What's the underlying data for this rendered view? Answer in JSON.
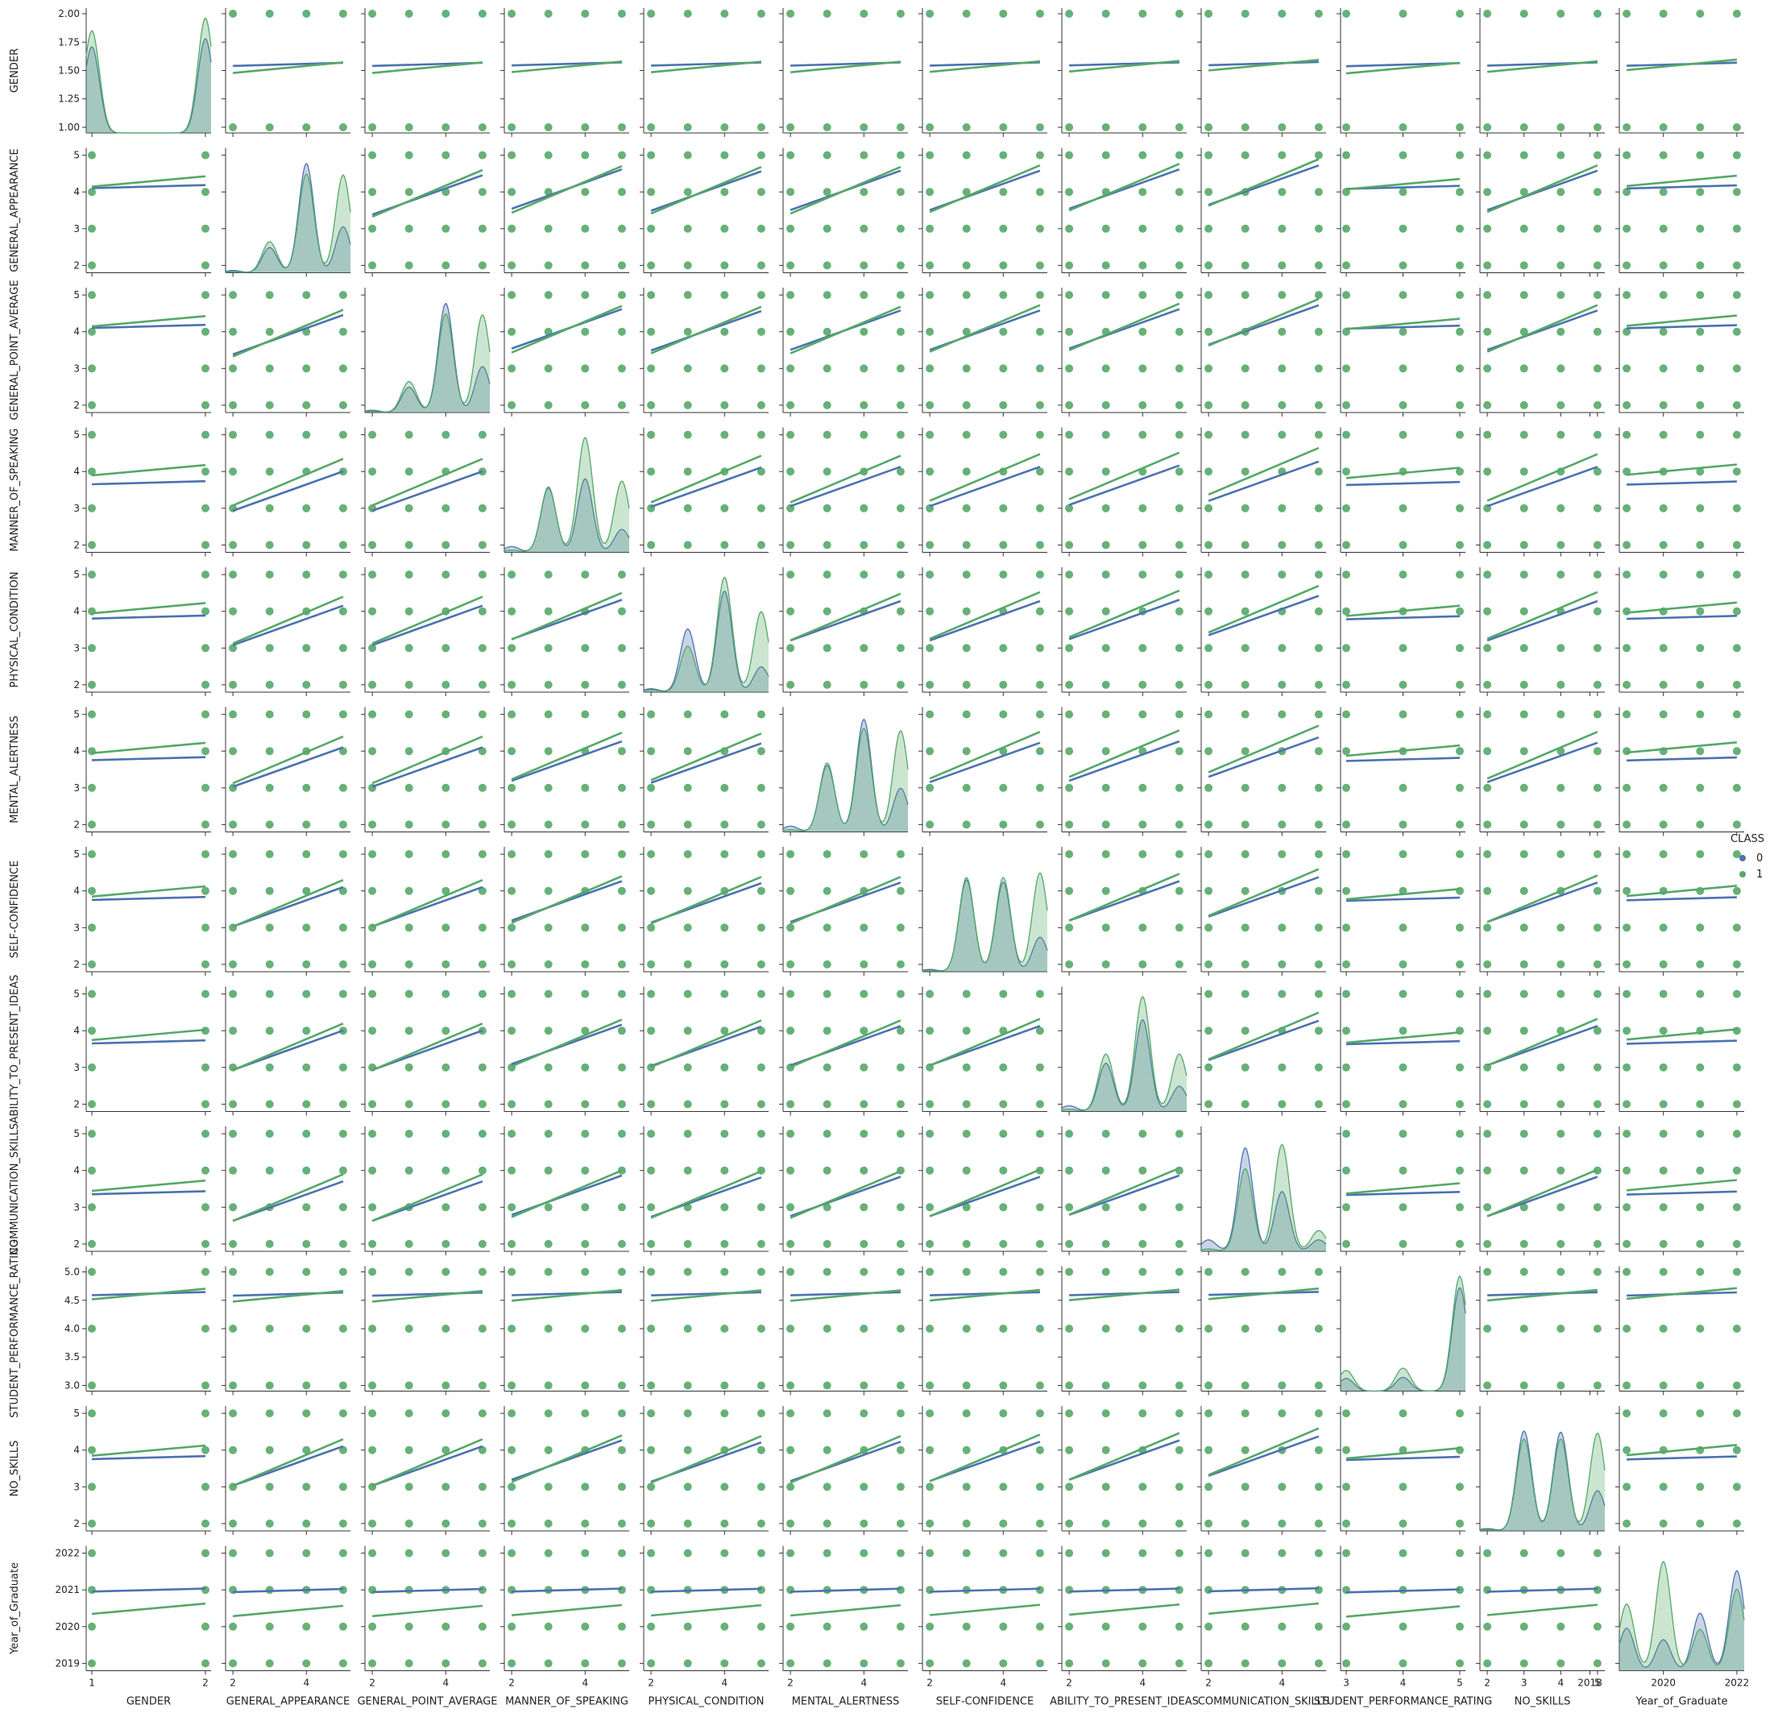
{
  "chart_data": {
    "type": "scatter",
    "subtype": "pairplot",
    "variables": [
      "GENDER",
      "GENERAL_APPEARANCE",
      "GENERAL_POINT_AVERAGE",
      "MANNER_OF_SPEAKING",
      "PHYSICAL_CONDITION",
      "MENTAL_ALERTNESS",
      "SELF-CONFIDENCE",
      "ABILITY_TO_PRESENT_IDEAS",
      "COMMUNICATION_SKILLS",
      "STUDENT_PERFORMANCE_RATING",
      "NO_SKILLS",
      "Year_of_Graduate"
    ],
    "axes": [
      {
        "range": [
          0.95,
          2.05
        ],
        "ticks": [
          1.0,
          1.25,
          1.5,
          1.75,
          2.0
        ],
        "ticklabels": [
          "1.00",
          "1.25",
          "1.50",
          "1.75",
          "2.00"
        ],
        "xticks": [
          1,
          2
        ],
        "xticklabels": [
          "1",
          "2"
        ],
        "levels": [
          1,
          2
        ],
        "means": [
          1.56,
          1.55
        ]
      },
      {
        "range": [
          1.8,
          5.2
        ],
        "ticks": [
          2,
          3,
          4,
          5
        ],
        "ticklabels": [
          "2",
          "3",
          "4",
          "5"
        ],
        "xticks": [
          2,
          4
        ],
        "xticklabels": [
          "2",
          "4"
        ],
        "levels": [
          2,
          3,
          4,
          5
        ],
        "means": [
          4.15,
          4.3
        ]
      },
      {
        "range": [
          1.8,
          5.2
        ],
        "ticks": [
          2,
          3,
          4,
          5
        ],
        "ticklabels": [
          "2",
          "3",
          "4",
          "5"
        ],
        "xticks": [
          2,
          4
        ],
        "xticklabels": [
          "2",
          "4"
        ],
        "levels": [
          2,
          3,
          4,
          5
        ],
        "means": [
          4.15,
          4.3
        ]
      },
      {
        "range": [
          1.8,
          5.2
        ],
        "ticks": [
          2,
          3,
          4,
          5
        ],
        "ticklabels": [
          "2",
          "3",
          "4",
          "5"
        ],
        "xticks": [
          2,
          4
        ],
        "xticklabels": [
          "2",
          "4"
        ],
        "levels": [
          2,
          3,
          4,
          5
        ],
        "means": [
          3.7,
          4.05
        ]
      },
      {
        "range": [
          1.8,
          5.2
        ],
        "ticks": [
          2,
          3,
          4,
          5
        ],
        "ticklabels": [
          "2",
          "3",
          "4",
          "5"
        ],
        "xticks": [
          2,
          4
        ],
        "xticklabels": [
          "2",
          "4"
        ],
        "levels": [
          2,
          3,
          4,
          5
        ],
        "means": [
          3.85,
          4.1
        ]
      },
      {
        "range": [
          1.8,
          5.2
        ],
        "ticks": [
          2,
          3,
          4,
          5
        ],
        "ticklabels": [
          "2",
          "3",
          "4",
          "5"
        ],
        "xticks": [
          2,
          4
        ],
        "xticklabels": [
          "2",
          "4"
        ],
        "levels": [
          2,
          3,
          4,
          5
        ],
        "means": [
          3.8,
          4.1
        ]
      },
      {
        "range": [
          1.8,
          5.2
        ],
        "ticks": [
          2,
          3,
          4,
          5
        ],
        "ticklabels": [
          "2",
          "3",
          "4",
          "5"
        ],
        "xticks": [
          2,
          4
        ],
        "xticklabels": [
          "2",
          "4"
        ],
        "levels": [
          2,
          3,
          4,
          5
        ],
        "means": [
          3.8,
          4.0
        ]
      },
      {
        "range": [
          1.8,
          5.2
        ],
        "ticks": [
          2,
          3,
          4,
          5
        ],
        "ticklabels": [
          "2",
          "3",
          "4",
          "5"
        ],
        "xticks": [
          2,
          4
        ],
        "xticklabels": [
          "2",
          "4"
        ],
        "levels": [
          2,
          3,
          4,
          5
        ],
        "means": [
          3.7,
          3.9
        ]
      },
      {
        "range": [
          1.8,
          5.2
        ],
        "ticks": [
          2,
          3,
          4,
          5
        ],
        "ticklabels": [
          "2",
          "3",
          "4",
          "5"
        ],
        "xticks": [
          2,
          4
        ],
        "xticklabels": [
          "2",
          "4"
        ],
        "levels": [
          2,
          3,
          4,
          5
        ],
        "means": [
          3.4,
          3.6
        ]
      },
      {
        "range": [
          2.9,
          5.1
        ],
        "ticks": [
          3.0,
          3.5,
          4.0,
          4.5,
          5.0
        ],
        "ticklabels": [
          "3.0",
          "3.5",
          "4.0",
          "4.5",
          "5.0"
        ],
        "xticks": [
          3,
          4,
          5
        ],
        "xticklabels": [
          "3",
          "4",
          "5"
        ],
        "levels": [
          3,
          4,
          5
        ],
        "means": [
          4.62,
          4.62
        ]
      },
      {
        "range": [
          1.8,
          5.2
        ],
        "ticks": [
          2,
          3,
          4,
          5
        ],
        "ticklabels": [
          "2",
          "3",
          "4",
          "5"
        ],
        "xticks": [
          2,
          3,
          4,
          5
        ],
        "xticklabels": [
          "2",
          "3",
          "4",
          "5"
        ],
        "levels": [
          2,
          3,
          4,
          5
        ],
        "means": [
          3.8,
          4.0
        ]
      },
      {
        "range": [
          2018.8,
          2022.2
        ],
        "ticks": [
          2019,
          2020,
          2021,
          2022
        ],
        "ticklabels": [
          "2019",
          "2020",
          "2021",
          "2022"
        ],
        "xticks": [
          2018,
          2020,
          2022
        ],
        "xticklabels": [
          "2018",
          "2020",
          "2022"
        ],
        "levels": [
          2019,
          2020,
          2021,
          2022
        ],
        "means": [
          2021.0,
          2020.5
        ]
      }
    ],
    "density_peaks": [
      {
        "levels": [
          1,
          2
        ],
        "class0": [
          0.75,
          0.82
        ],
        "class1": [
          0.89,
          1.0
        ]
      },
      {
        "levels": [
          2,
          3,
          4,
          5
        ],
        "class0": [
          0.02,
          0.22,
          0.95,
          0.4
        ],
        "class1": [
          0.01,
          0.27,
          0.86,
          0.85
        ]
      },
      {
        "levels": [
          2,
          3,
          4,
          5
        ],
        "class0": [
          0.02,
          0.22,
          0.95,
          0.4
        ],
        "class1": [
          0.01,
          0.27,
          0.86,
          0.85
        ]
      },
      {
        "levels": [
          2,
          3,
          4,
          5
        ],
        "class0": [
          0.05,
          0.56,
          0.64,
          0.2
        ],
        "class1": [
          0.02,
          0.57,
          1.0,
          0.62
        ]
      },
      {
        "levels": [
          2,
          3,
          4,
          5
        ],
        "class0": [
          0.03,
          0.55,
          0.88,
          0.22
        ],
        "class1": [
          0.02,
          0.4,
          1.0,
          0.7
        ]
      },
      {
        "levels": [
          2,
          3,
          4,
          5
        ],
        "class0": [
          0.05,
          0.58,
          0.98,
          0.38
        ],
        "class1": [
          0.02,
          0.6,
          0.9,
          0.88
        ]
      },
      {
        "levels": [
          2,
          3,
          4,
          5
        ],
        "class0": [
          0.02,
          0.8,
          0.78,
          0.3
        ],
        "class1": [
          0.01,
          0.82,
          0.82,
          0.86
        ]
      },
      {
        "levels": [
          2,
          3,
          4,
          5
        ],
        "class0": [
          0.05,
          0.42,
          0.8,
          0.22
        ],
        "class1": [
          0.02,
          0.5,
          1.0,
          0.5
        ]
      },
      {
        "levels": [
          2,
          3,
          4,
          5
        ],
        "class0": [
          0.1,
          0.9,
          0.52,
          0.1
        ],
        "class1": [
          0.02,
          0.72,
          0.93,
          0.18
        ]
      },
      {
        "levels": [
          3,
          4,
          5
        ],
        "class0": [
          0.11,
          0.12,
          0.9
        ],
        "class1": [
          0.18,
          0.2,
          1.0
        ]
      },
      {
        "levels": [
          2,
          3,
          4,
          5
        ],
        "class0": [
          0.02,
          0.87,
          0.86,
          0.35
        ],
        "class1": [
          0.01,
          0.8,
          0.8,
          0.85
        ]
      },
      {
        "levels": [
          2019,
          2020,
          2021,
          2022
        ],
        "class0": [
          0.37,
          0.27,
          0.5,
          0.87
        ],
        "class1": [
          0.58,
          0.95,
          0.36,
          0.71
        ]
      }
    ],
    "legend": {
      "title": "CLASS",
      "entries": [
        "0",
        "1"
      ],
      "placement": "right"
    },
    "series": [
      {
        "name": "0",
        "color": "#4c72b0"
      },
      {
        "name": "1",
        "color": "#55a868"
      }
    ]
  }
}
